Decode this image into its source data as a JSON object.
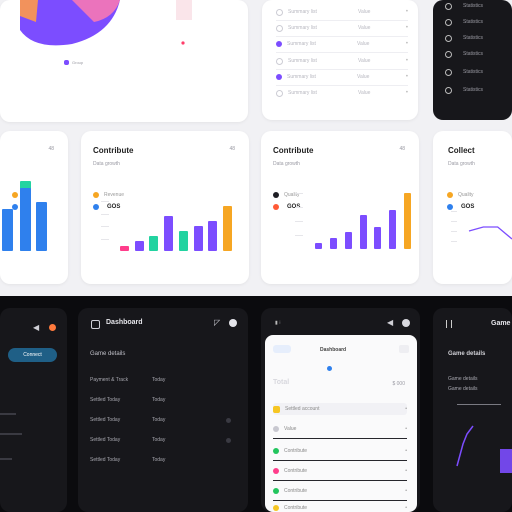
{
  "top_left": {
    "tag_label": "Group",
    "accent": "#7c4dff"
  },
  "top_mid_list": {
    "items": [
      {
        "label": "Summary list",
        "value": "Value"
      },
      {
        "label": "Summary list",
        "value": "Value"
      },
      {
        "label": "Summary list",
        "value": "Value"
      },
      {
        "label": "Summary list",
        "value": "Value"
      },
      {
        "label": "Summary list",
        "value": "Value"
      },
      {
        "label": "Summary list",
        "value": "Value"
      }
    ]
  },
  "top_right_list": {
    "items": [
      {
        "label": "Statistics"
      },
      {
        "label": "Statistics"
      },
      {
        "label": "Statistics"
      },
      {
        "label": "Statistics"
      },
      {
        "label": "Statistics"
      },
      {
        "label": "Statistics"
      }
    ]
  },
  "chart_cards": [
    {
      "title": "",
      "corner": "48",
      "subtitle": "",
      "legend": [
        {
          "label": "",
          "value": "",
          "color": "#f6a623"
        },
        {
          "label": "",
          "value": "",
          "color": "#2f80ed"
        }
      ]
    },
    {
      "title": "Contribute",
      "corner": "48",
      "subtitle": "Data growth",
      "legend": [
        {
          "label": "Revenue",
          "value": "",
          "color": "#f6a623"
        },
        {
          "label": "",
          "value": "GOS",
          "color": "#2f80ed"
        }
      ]
    },
    {
      "title": "Contribute",
      "corner": "48",
      "subtitle": "Data growth",
      "legend": [
        {
          "label": "Quality",
          "value": "",
          "color": "#1e1e24"
        },
        {
          "label": "",
          "value": "GOS",
          "color": "#ff5a36"
        }
      ]
    },
    {
      "title": "Collect",
      "corner": "",
      "subtitle": "Data growth",
      "legend": [
        {
          "label": "Quality",
          "value": "",
          "color": "#f6a623"
        },
        {
          "label": "",
          "value": "GOS",
          "color": "#2f80ed"
        }
      ]
    }
  ],
  "chart_data": [
    {
      "type": "bar",
      "series": [
        {
          "name": "",
          "values": [
            6,
            9,
            7
          ],
          "color": "#2f80ed"
        },
        {
          "name": "",
          "values": [
            0,
            10,
            0
          ],
          "color": "#22d3a0"
        }
      ],
      "categories": [
        "",
        "",
        ""
      ],
      "ylim": [
        0,
        10
      ]
    },
    {
      "type": "bar",
      "categories": [
        "",
        "",
        "",
        "",
        "",
        "",
        "",
        ""
      ],
      "values": [
        1,
        2,
        3,
        7,
        4,
        5,
        6,
        9
      ],
      "colors": [
        "#ff3d8b",
        "#7c4dff",
        "#22d3a0",
        "#7c4dff",
        "#22d3a0",
        "#7c4dff",
        "#7c4dff",
        "#f6a623"
      ],
      "ylim": [
        0,
        10
      ]
    },
    {
      "type": "bar",
      "categories": [
        "",
        "",
        "",
        "",
        "",
        "",
        ""
      ],
      "values": [
        1,
        2,
        3,
        6,
        4,
        7,
        10
      ],
      "colors": [
        "#7c4dff",
        "#7c4dff",
        "#7c4dff",
        "#7c4dff",
        "#7c4dff",
        "#7c4dff",
        "#f6a623"
      ],
      "ylim": [
        0,
        10
      ]
    },
    {
      "type": "line",
      "x": [
        0,
        1,
        2,
        3
      ],
      "values": [
        5,
        6,
        6,
        3
      ],
      "color": "#7c4dff",
      "ylim": [
        0,
        10
      ]
    }
  ],
  "bottom_cards": [
    {
      "button_label": "Connect"
    },
    {
      "title": "Dashboard",
      "section": "Game details",
      "rows": [
        {
          "label": "Payment & Track",
          "value": "Today"
        },
        {
          "label": "Settled Today",
          "value": "Today"
        },
        {
          "label": "Settled Today",
          "value": "Today"
        },
        {
          "label": "Settled Today",
          "value": "Today"
        },
        {
          "label": "Settled Today",
          "value": "Today"
        }
      ]
    },
    {
      "tab": "Dashboard",
      "heading": "Total",
      "stat": "$ 000",
      "rows": [
        {
          "label": "Settled account",
          "color": "#f6c623"
        },
        {
          "label": "Value",
          "color": "#c8c8d0"
        },
        {
          "label": "Contribute",
          "color": "#22c55e"
        },
        {
          "label": "Contribute",
          "color": "#ff3d8b"
        },
        {
          "label": "Contribute",
          "color": "#22c55e"
        },
        {
          "label": "Contribute",
          "color": "#f6c623"
        }
      ]
    },
    {
      "title": "Game",
      "subtitle": "Game details",
      "rows": [
        {
          "label": "Game details"
        },
        {
          "label": "Game details"
        }
      ]
    }
  ]
}
